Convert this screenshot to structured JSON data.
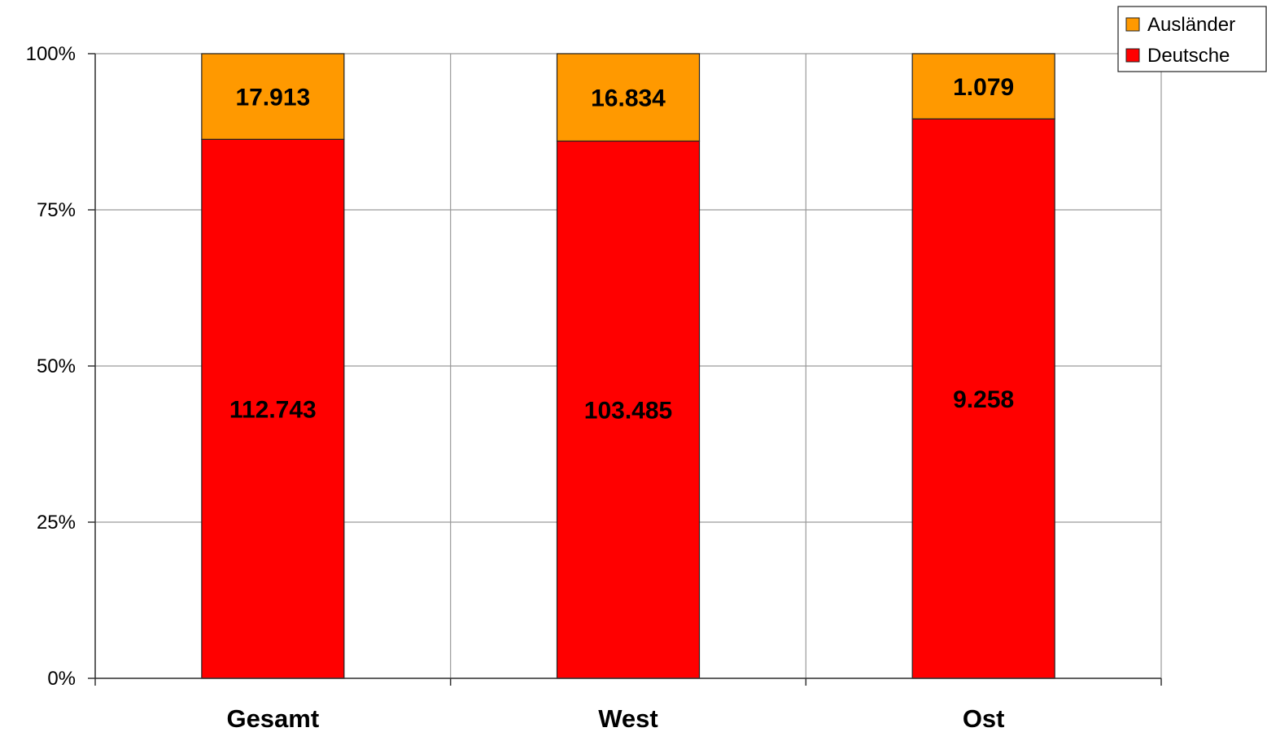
{
  "chart_data": {
    "type": "bar",
    "stacking": "percent",
    "categories": [
      "Gesamt",
      "West",
      "Ost"
    ],
    "series": [
      {
        "name": "Deutsche",
        "color": "#ff0000",
        "values": [
          112743,
          103485,
          9258
        ],
        "labels": [
          "112.743",
          "103.485",
          "9.258"
        ]
      },
      {
        "name": "Ausländer",
        "color": "#ff9900",
        "values": [
          17913,
          16834,
          1079
        ],
        "labels": [
          "17.913",
          "16.834",
          "1.079"
        ]
      }
    ],
    "yticks": [
      "0%",
      "25%",
      "50%",
      "75%",
      "100%"
    ],
    "ylim": [
      0,
      100
    ],
    "grid": true,
    "legend": {
      "position": "top-right",
      "items": [
        "Ausländer",
        "Deutsche"
      ]
    },
    "title": "",
    "xlabel": "",
    "ylabel": ""
  }
}
